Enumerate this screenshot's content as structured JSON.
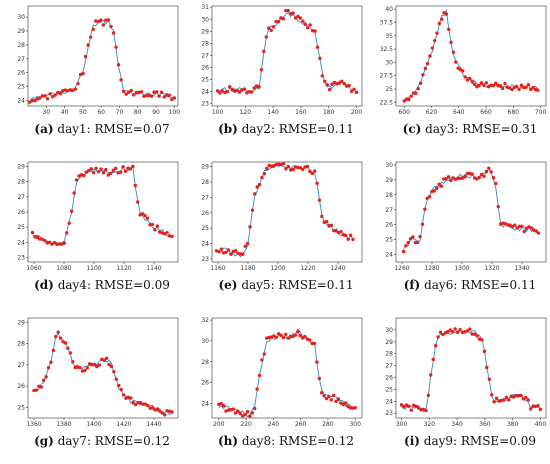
{
  "colors": {
    "line": "#3a86c8",
    "points": "#e8201a",
    "axis": "#333333"
  },
  "chart_data": [
    {
      "type": "line",
      "label": "(a)",
      "caption": "day1: RMSE=0.07",
      "xlim": [
        20,
        102
      ],
      "ylim": [
        23.6,
        30.8
      ],
      "xticks": [
        30,
        40,
        50,
        60,
        70,
        80,
        90,
        100
      ],
      "yticks": [
        24,
        25,
        26,
        27,
        28,
        29,
        30
      ],
      "knots": [
        [
          21,
          24
        ],
        [
          36,
          24.5
        ],
        [
          45,
          24.8
        ],
        [
          50,
          26
        ],
        [
          53,
          28
        ],
        [
          56,
          29.5
        ],
        [
          60,
          29.6
        ],
        [
          64,
          29.6
        ],
        [
          67,
          29
        ],
        [
          69,
          27
        ],
        [
          72,
          24.6
        ],
        [
          78,
          24.5
        ],
        [
          95,
          24.4
        ],
        [
          100,
          24.1
        ]
      ]
    },
    {
      "type": "line",
      "label": "(b)",
      "caption": "day2: RMSE=0.11",
      "xlim": [
        96,
        204
      ],
      "ylim": [
        22.8,
        31.1
      ],
      "xticks": [
        100,
        120,
        140,
        160,
        180,
        200
      ],
      "yticks": [
        23,
        24,
        25,
        26,
        27,
        28,
        29,
        30,
        31
      ],
      "knots": [
        [
          100,
          24.1
        ],
        [
          115,
          24.2
        ],
        [
          125,
          24.1
        ],
        [
          130,
          24.4
        ],
        [
          133,
          27
        ],
        [
          136,
          29
        ],
        [
          142,
          29.6
        ],
        [
          150,
          30.6
        ],
        [
          158,
          30
        ],
        [
          165,
          29.5
        ],
        [
          170,
          29
        ],
        [
          173,
          27
        ],
        [
          176,
          25
        ],
        [
          180,
          24.3
        ],
        [
          188,
          24.8
        ],
        [
          195,
          24.3
        ],
        [
          200,
          24
        ]
      ]
    },
    {
      "type": "line",
      "label": "(c)",
      "caption": "day3: RMSE=0.31",
      "xlim": [
        594,
        704
      ],
      "ylim": [
        21.8,
        40.6
      ],
      "xticks": [
        600,
        620,
        640,
        660,
        680,
        700
      ],
      "yticks": [
        22.5,
        25.0,
        27.5,
        30.0,
        32.5,
        35.0,
        37.5,
        40.0
      ],
      "knots": [
        [
          600,
          22.6
        ],
        [
          606,
          23.5
        ],
        [
          610,
          25
        ],
        [
          615,
          28
        ],
        [
          620,
          32
        ],
        [
          625,
          36
        ],
        [
          628,
          39
        ],
        [
          631,
          39.5
        ],
        [
          634,
          34
        ],
        [
          638,
          30
        ],
        [
          643,
          28
        ],
        [
          648,
          26.5
        ],
        [
          655,
          25.8
        ],
        [
          670,
          25.5
        ],
        [
          690,
          25.4
        ],
        [
          698,
          25.3
        ]
      ]
    },
    {
      "type": "line",
      "label": "(d)",
      "caption": "day4: RMSE=0.09",
      "xlim": [
        1056,
        1156
      ],
      "ylim": [
        22.7,
        29.3
      ],
      "xticks": [
        1060,
        1080,
        1100,
        1120,
        1140
      ],
      "yticks": [
        23,
        24,
        25,
        26,
        27,
        28,
        29
      ],
      "knots": [
        [
          1059,
          24.5
        ],
        [
          1065,
          24.2
        ],
        [
          1075,
          23.8
        ],
        [
          1080,
          24
        ],
        [
          1085,
          26
        ],
        [
          1088,
          28
        ],
        [
          1092,
          28.5
        ],
        [
          1100,
          28.7
        ],
        [
          1110,
          28.6
        ],
        [
          1120,
          28.8
        ],
        [
          1126,
          28.9
        ],
        [
          1130,
          26
        ],
        [
          1135,
          25.5
        ],
        [
          1140,
          25
        ],
        [
          1146,
          24.7
        ],
        [
          1152,
          24.3
        ]
      ]
    },
    {
      "type": "line",
      "label": "(e)",
      "caption": "day5: RMSE=0.11",
      "xlim": [
        1156,
        1256
      ],
      "ylim": [
        22.8,
        29.3
      ],
      "xticks": [
        1160,
        1180,
        1200,
        1220,
        1240
      ],
      "yticks": [
        23,
        24,
        25,
        26,
        27,
        28,
        29
      ],
      "knots": [
        [
          1159,
          23.7
        ],
        [
          1170,
          23.4
        ],
        [
          1176,
          23.2
        ],
        [
          1180,
          24
        ],
        [
          1184,
          27
        ],
        [
          1190,
          28.5
        ],
        [
          1195,
          29
        ],
        [
          1200,
          29.1
        ],
        [
          1210,
          28.9
        ],
        [
          1218,
          29
        ],
        [
          1225,
          28.5
        ],
        [
          1230,
          25.5
        ],
        [
          1236,
          25
        ],
        [
          1242,
          24.6
        ],
        [
          1250,
          24.3
        ]
      ]
    },
    {
      "type": "line",
      "label": "(f)",
      "caption": "day6: RMSE=0.11",
      "xlim": [
        1256,
        1356
      ],
      "ylim": [
        23.5,
        30.2
      ],
      "xticks": [
        1260,
        1280,
        1300,
        1320,
        1340
      ],
      "yticks": [
        24,
        25,
        26,
        27,
        28,
        29,
        30
      ],
      "knots": [
        [
          1261,
          24.3
        ],
        [
          1266,
          25
        ],
        [
          1272,
          25
        ],
        [
          1276,
          27.5
        ],
        [
          1282,
          28.5
        ],
        [
          1290,
          29
        ],
        [
          1300,
          29.3
        ],
        [
          1310,
          29.2
        ],
        [
          1318,
          29.6
        ],
        [
          1322,
          29
        ],
        [
          1326,
          26
        ],
        [
          1332,
          25.8
        ],
        [
          1342,
          25.7
        ],
        [
          1351,
          25.6
        ]
      ]
    },
    {
      "type": "line",
      "label": "(g)",
      "caption": "day7: RMSE=0.12",
      "xlim": [
        1356,
        1456
      ],
      "ylim": [
        24.5,
        29.2
      ],
      "xticks": [
        1360,
        1380,
        1400,
        1420,
        1440
      ],
      "yticks": [
        25,
        26,
        27,
        28,
        29
      ],
      "knots": [
        [
          1360,
          25.8
        ],
        [
          1365,
          26
        ],
        [
          1370,
          26.8
        ],
        [
          1375,
          28.5
        ],
        [
          1381,
          28
        ],
        [
          1387,
          27
        ],
        [
          1393,
          26.8
        ],
        [
          1400,
          27
        ],
        [
          1408,
          27.2
        ],
        [
          1412,
          27
        ],
        [
          1417,
          25.8
        ],
        [
          1425,
          25.3
        ],
        [
          1435,
          25.1
        ],
        [
          1445,
          24.8
        ],
        [
          1452,
          24.7
        ]
      ]
    },
    {
      "type": "line",
      "label": "(h)",
      "caption": "day8: RMSE=0.12",
      "xlim": [
        195,
        305
      ],
      "ylim": [
        22.6,
        32.2
      ],
      "xticks": [
        200,
        220,
        240,
        260,
        280,
        300
      ],
      "yticks": [
        24,
        26,
        28,
        30,
        32
      ],
      "knots": [
        [
          200,
          23.8
        ],
        [
          210,
          23.3
        ],
        [
          222,
          22.9
        ],
        [
          226,
          23.5
        ],
        [
          230,
          27
        ],
        [
          235,
          30
        ],
        [
          242,
          30.5
        ],
        [
          252,
          30.3
        ],
        [
          258,
          31
        ],
        [
          265,
          30
        ],
        [
          270,
          29.8
        ],
        [
          273,
          27
        ],
        [
          276,
          24.8
        ],
        [
          285,
          24.5
        ],
        [
          295,
          23.8
        ],
        [
          300,
          23.6
        ]
      ]
    },
    {
      "type": "line",
      "label": "(i)",
      "caption": "day9: RMSE=0.09",
      "xlim": [
        296,
        404
      ],
      "ylim": [
        22.6,
        31.0
      ],
      "xticks": [
        300,
        320,
        340,
        360,
        380,
        400
      ],
      "yticks": [
        23,
        24,
        25,
        26,
        27,
        28,
        29,
        30
      ],
      "knots": [
        [
          300,
          23.5
        ],
        [
          310,
          23.5
        ],
        [
          318,
          23.4
        ],
        [
          322,
          27
        ],
        [
          326,
          29.5
        ],
        [
          332,
          29.8
        ],
        [
          345,
          29.9
        ],
        [
          352,
          29.8
        ],
        [
          358,
          29.3
        ],
        [
          362,
          26.5
        ],
        [
          366,
          24
        ],
        [
          372,
          24
        ],
        [
          380,
          24.4
        ],
        [
          388,
          24.4
        ],
        [
          393,
          23.6
        ],
        [
          400,
          23.5
        ]
      ]
    }
  ]
}
